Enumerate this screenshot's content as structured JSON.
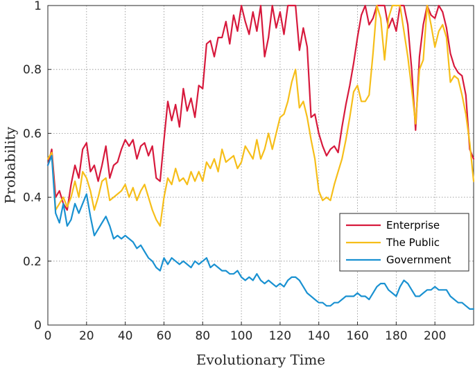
{
  "chart_data": {
    "type": "line",
    "title": "",
    "xlabel": "Evolutionary Time",
    "ylabel": "Probability",
    "xlim": [
      0,
      220
    ],
    "ylim": [
      0,
      1
    ],
    "xticks": [
      "0",
      "20",
      "40",
      "60",
      "80",
      "100",
      "120",
      "140",
      "160",
      "180",
      "200"
    ],
    "yticks": [
      "0",
      "0.2",
      "0.4",
      "0.6",
      "0.8",
      "1"
    ],
    "grid": true,
    "legend_position": "lower-right",
    "series": [
      {
        "name": "Enterprise",
        "color": "#d7193c",
        "x": [
          0,
          2,
          4,
          6,
          8,
          10,
          12,
          14,
          16,
          18,
          20,
          22,
          24,
          26,
          28,
          30,
          32,
          34,
          36,
          38,
          40,
          42,
          44,
          46,
          48,
          50,
          52,
          54,
          56,
          58,
          60,
          62,
          64,
          66,
          68,
          70,
          72,
          74,
          76,
          78,
          80,
          82,
          84,
          86,
          88,
          90,
          92,
          94,
          96,
          98,
          100,
          102,
          104,
          106,
          108,
          110,
          112,
          114,
          116,
          118,
          120,
          122,
          124,
          126,
          128,
          130,
          132,
          134,
          136,
          138,
          140,
          142,
          144,
          146,
          148,
          150,
          152,
          154,
          156,
          158,
          160,
          162,
          164,
          166,
          168,
          170,
          172,
          174,
          176,
          178,
          180,
          182,
          184,
          186,
          188,
          190,
          192,
          194,
          196,
          198,
          200,
          202,
          204,
          206,
          208,
          210,
          212,
          214,
          216,
          218,
          220
        ],
        "y": [
          0.5,
          0.55,
          0.4,
          0.42,
          0.38,
          0.36,
          0.44,
          0.5,
          0.46,
          0.55,
          0.57,
          0.48,
          0.5,
          0.45,
          0.5,
          0.56,
          0.46,
          0.5,
          0.51,
          0.55,
          0.58,
          0.56,
          0.58,
          0.52,
          0.56,
          0.57,
          0.53,
          0.56,
          0.46,
          0.45,
          0.58,
          0.7,
          0.64,
          0.69,
          0.62,
          0.74,
          0.67,
          0.71,
          0.65,
          0.75,
          0.74,
          0.88,
          0.89,
          0.84,
          0.9,
          0.9,
          0.95,
          0.88,
          0.97,
          0.92,
          1.0,
          0.95,
          0.91,
          0.98,
          0.92,
          1.0,
          0.84,
          0.9,
          1.0,
          0.93,
          0.98,
          0.91,
          1.0,
          1.0,
          1.0,
          0.86,
          0.93,
          0.87,
          0.65,
          0.66,
          0.6,
          0.56,
          0.53,
          0.55,
          0.56,
          0.54,
          0.62,
          0.69,
          0.75,
          0.82,
          0.9,
          0.97,
          1.0,
          0.94,
          0.96,
          1.0,
          1.0,
          1.0,
          0.93,
          0.96,
          0.92,
          1.0,
          1.0,
          0.94,
          0.8,
          0.61,
          0.84,
          0.94,
          1.0,
          0.97,
          0.96,
          1.0,
          0.98,
          0.93,
          0.85,
          0.81,
          0.79,
          0.78,
          0.72,
          0.55,
          0.52
        ]
      },
      {
        "name": "The Public",
        "color": "#f6be19",
        "x": [
          0,
          2,
          4,
          6,
          8,
          10,
          12,
          14,
          16,
          18,
          20,
          22,
          24,
          26,
          28,
          30,
          32,
          34,
          36,
          38,
          40,
          42,
          44,
          46,
          48,
          50,
          52,
          54,
          56,
          58,
          60,
          62,
          64,
          66,
          68,
          70,
          72,
          74,
          76,
          78,
          80,
          82,
          84,
          86,
          88,
          90,
          92,
          94,
          96,
          98,
          100,
          102,
          104,
          106,
          108,
          110,
          112,
          114,
          116,
          118,
          120,
          122,
          124,
          126,
          128,
          130,
          132,
          134,
          136,
          138,
          140,
          142,
          144,
          146,
          148,
          150,
          152,
          154,
          156,
          158,
          160,
          162,
          164,
          166,
          168,
          170,
          172,
          174,
          176,
          178,
          180,
          182,
          184,
          186,
          188,
          190,
          192,
          194,
          196,
          198,
          200,
          202,
          204,
          206,
          208,
          210,
          212,
          214,
          216,
          218,
          220
        ],
        "y": [
          0.52,
          0.54,
          0.36,
          0.38,
          0.4,
          0.37,
          0.4,
          0.45,
          0.4,
          0.48,
          0.46,
          0.42,
          0.36,
          0.4,
          0.45,
          0.46,
          0.39,
          0.4,
          0.41,
          0.42,
          0.44,
          0.4,
          0.43,
          0.39,
          0.42,
          0.44,
          0.4,
          0.36,
          0.33,
          0.31,
          0.4,
          0.46,
          0.44,
          0.49,
          0.45,
          0.46,
          0.44,
          0.48,
          0.45,
          0.48,
          0.45,
          0.51,
          0.49,
          0.52,
          0.48,
          0.55,
          0.51,
          0.52,
          0.53,
          0.49,
          0.51,
          0.56,
          0.54,
          0.52,
          0.58,
          0.52,
          0.55,
          0.6,
          0.55,
          0.6,
          0.65,
          0.66,
          0.7,
          0.76,
          0.8,
          0.68,
          0.7,
          0.65,
          0.58,
          0.52,
          0.42,
          0.39,
          0.4,
          0.39,
          0.44,
          0.48,
          0.52,
          0.58,
          0.65,
          0.73,
          0.75,
          0.7,
          0.7,
          0.72,
          0.85,
          1.0,
          0.96,
          0.83,
          0.96,
          1.0,
          1.0,
          1.0,
          0.92,
          0.84,
          0.74,
          0.63,
          0.8,
          0.83,
          1.0,
          0.94,
          0.87,
          0.92,
          0.94,
          0.9,
          0.76,
          0.78,
          0.77,
          0.72,
          0.66,
          0.57,
          0.45
        ]
      },
      {
        "name": "Government",
        "color": "#1991d1",
        "x": [
          0,
          2,
          4,
          6,
          8,
          10,
          12,
          14,
          16,
          18,
          20,
          22,
          24,
          26,
          28,
          30,
          32,
          34,
          36,
          38,
          40,
          42,
          44,
          46,
          48,
          50,
          52,
          54,
          56,
          58,
          60,
          62,
          64,
          66,
          68,
          70,
          72,
          74,
          76,
          78,
          80,
          82,
          84,
          86,
          88,
          90,
          92,
          94,
          96,
          98,
          100,
          102,
          104,
          106,
          108,
          110,
          112,
          114,
          116,
          118,
          120,
          122,
          124,
          126,
          128,
          130,
          132,
          134,
          136,
          138,
          140,
          142,
          144,
          146,
          148,
          150,
          152,
          154,
          156,
          158,
          160,
          162,
          164,
          166,
          168,
          170,
          172,
          174,
          176,
          178,
          180,
          182,
          184,
          186,
          188,
          190,
          192,
          194,
          196,
          198,
          200,
          202,
          204,
          206,
          208,
          210,
          212,
          214,
          216,
          218,
          220
        ],
        "y": [
          0.5,
          0.53,
          0.35,
          0.32,
          0.38,
          0.31,
          0.33,
          0.38,
          0.35,
          0.38,
          0.41,
          0.34,
          0.28,
          0.3,
          0.32,
          0.34,
          0.31,
          0.27,
          0.28,
          0.27,
          0.28,
          0.27,
          0.26,
          0.24,
          0.25,
          0.23,
          0.21,
          0.2,
          0.18,
          0.17,
          0.21,
          0.19,
          0.21,
          0.2,
          0.19,
          0.2,
          0.19,
          0.18,
          0.2,
          0.19,
          0.2,
          0.21,
          0.18,
          0.19,
          0.18,
          0.17,
          0.17,
          0.16,
          0.16,
          0.17,
          0.15,
          0.14,
          0.15,
          0.14,
          0.16,
          0.14,
          0.13,
          0.14,
          0.13,
          0.12,
          0.13,
          0.12,
          0.14,
          0.15,
          0.15,
          0.14,
          0.12,
          0.1,
          0.09,
          0.08,
          0.07,
          0.07,
          0.06,
          0.06,
          0.07,
          0.07,
          0.08,
          0.09,
          0.09,
          0.09,
          0.1,
          0.09,
          0.09,
          0.08,
          0.1,
          0.12,
          0.13,
          0.13,
          0.11,
          0.1,
          0.09,
          0.12,
          0.14,
          0.13,
          0.11,
          0.09,
          0.09,
          0.1,
          0.11,
          0.11,
          0.12,
          0.11,
          0.11,
          0.11,
          0.09,
          0.08,
          0.07,
          0.07,
          0.06,
          0.05,
          0.05
        ]
      }
    ]
  }
}
